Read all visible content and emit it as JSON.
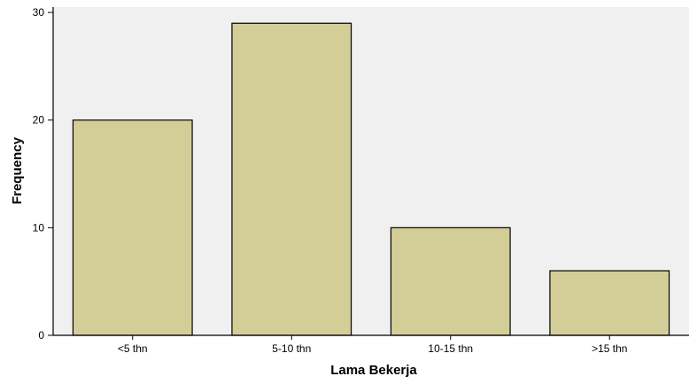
{
  "chart_data": {
    "type": "bar",
    "title": "",
    "xlabel": "Lama Bekerja",
    "ylabel": "Frequency",
    "categories": [
      "<5 thn",
      "5-10 thn",
      "10-15 thn",
      ">15 thn"
    ],
    "values": [
      20,
      29,
      10,
      6
    ],
    "ylim": [
      0,
      30.5
    ],
    "yticks": [
      "0",
      "10",
      "20",
      "30"
    ],
    "grid": false,
    "legend": "none",
    "colors": {
      "bar_fill": "#D3CE98",
      "bar_stroke": "#000000",
      "plot_background": "#F0F0F0",
      "axis": "#000000"
    }
  }
}
